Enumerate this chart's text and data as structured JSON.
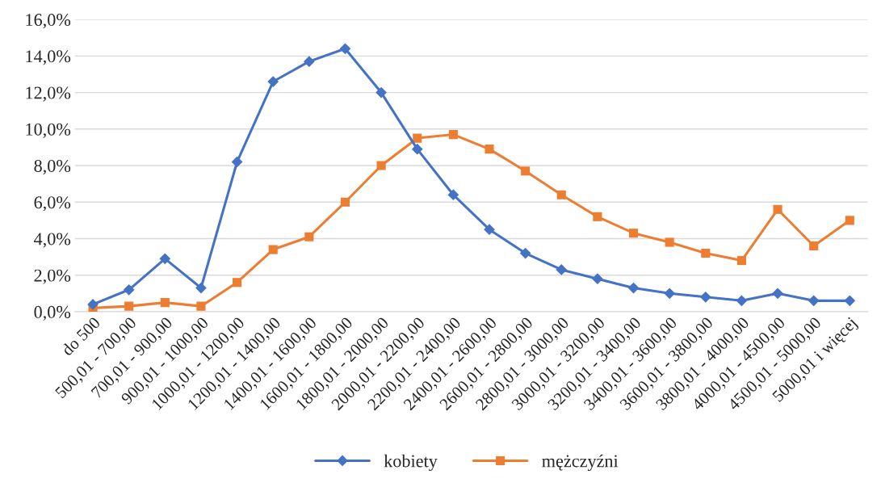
{
  "chart_data": {
    "type": "line",
    "categories": [
      "do 500",
      "500,01 - 700,00",
      "700,01 - 900,00",
      "900,01 - 1000,00",
      "1000,01 - 1200,00",
      "1200,01 - 1400,00",
      "1400,01 - 1600,00",
      "1600,01 - 1800,00",
      "1800,01 - 2000,00",
      "2000,01 - 2200,00",
      "2200,01 - 2400,00",
      "2400,01 - 2600,00",
      "2600,01 - 2800,00",
      "2800,01 - 3000,00",
      "3000,01 - 3200,00",
      "3200,01 - 3400,00",
      "3400,01 - 3600,00",
      "3600,01 - 3800,00",
      "3800,01 - 4000,00",
      "4000,01 - 4500,00",
      "4500,01 - 5000,00",
      "5000,01 i więcej"
    ],
    "series": [
      {
        "name": "kobiety",
        "color": "#4472c4",
        "marker": "diamond",
        "values": [
          0.4,
          1.2,
          2.9,
          1.3,
          8.2,
          12.6,
          13.7,
          14.4,
          12.0,
          8.9,
          6.4,
          4.5,
          3.2,
          2.3,
          1.8,
          1.3,
          1.0,
          0.8,
          0.6,
          1.0,
          0.6,
          0.6
        ]
      },
      {
        "name": "mężczyźni",
        "color": "#ed7d31",
        "marker": "square",
        "values": [
          0.2,
          0.3,
          0.5,
          0.3,
          1.6,
          3.4,
          4.1,
          6.0,
          8.0,
          9.5,
          9.7,
          8.9,
          7.7,
          6.4,
          5.2,
          4.3,
          3.8,
          3.2,
          2.8,
          5.6,
          3.6,
          5.0
        ]
      }
    ],
    "ylim": [
      0,
      16
    ],
    "yticks": [
      {
        "value": 0,
        "label": "0,0%"
      },
      {
        "value": 2,
        "label": "2,0%"
      },
      {
        "value": 4,
        "label": "4,0%"
      },
      {
        "value": 6,
        "label": "6,0%"
      },
      {
        "value": 8,
        "label": "8,0%"
      },
      {
        "value": 10,
        "label": "10,0%"
      },
      {
        "value": 12,
        "label": "12,0%"
      },
      {
        "value": 14,
        "label": "14,0%"
      },
      {
        "value": 16,
        "label": "16,0%"
      }
    ],
    "grid": "y",
    "legend": "bottom",
    "line_style": "solid"
  }
}
